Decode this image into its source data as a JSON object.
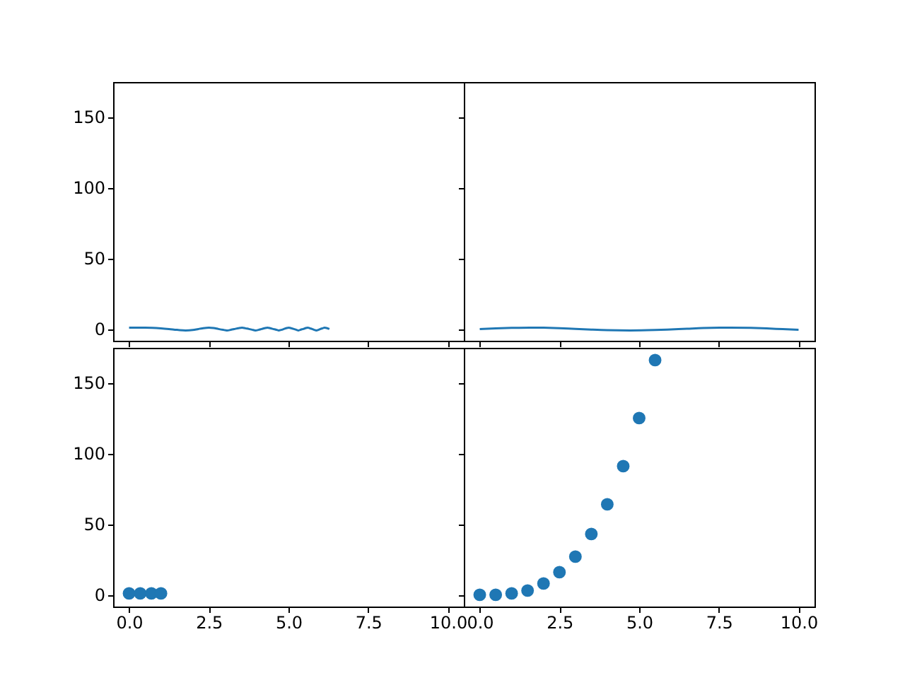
{
  "chart_data": [
    {
      "type": "line",
      "x": [
        0,
        0.5,
        1.0,
        1.2533,
        1.5,
        1.7725,
        2.0,
        2.1708,
        2.3,
        2.5066,
        2.65,
        2.8025,
        2.95,
        3.07,
        3.19,
        3.316,
        3.43,
        3.5449,
        3.65,
        3.7599,
        3.86,
        3.9633,
        4.06,
        4.1568,
        4.25,
        4.3416,
        4.43,
        4.519,
        4.6,
        4.6897,
        4.77,
        4.8543,
        4.93,
        5.0133,
        5.09,
        5.1674,
        5.24,
        5.3166,
        5.39,
        5.4616,
        5.53,
        5.6024,
        5.67,
        5.7397,
        5.81,
        5.8737,
        5.94,
        6.0043,
        6.07,
        6.1317,
        6.2832
      ],
      "values": [
        1,
        1,
        0.5,
        0,
        -0.6,
        -1,
        -0.7,
        0,
        0.5,
        1,
        0.7,
        0,
        -0.6,
        -1,
        -0.6,
        0,
        0.6,
        1,
        0.5,
        0,
        -0.5,
        -1,
        -0.6,
        0,
        0.6,
        1,
        0.6,
        0,
        -0.4,
        -1,
        -0.6,
        0,
        0.6,
        1,
        0.5,
        0,
        -0.5,
        -1,
        -0.4,
        0,
        0.6,
        1,
        0.5,
        0,
        -0.6,
        -1,
        -0.6,
        0,
        0.5,
        1,
        0
      ],
      "color": "#1f77b4",
      "xlim": [
        -0.5,
        10.5
      ],
      "ylim": [
        -8.3,
        174.7
      ],
      "xticks": [
        0,
        2.5,
        5,
        7.5,
        10
      ],
      "yticks": [
        0,
        50,
        100,
        150
      ],
      "tick_labels": "y"
    },
    {
      "type": "line",
      "x": [
        0,
        0.5,
        1,
        1.5708,
        2,
        2.5,
        3,
        3.5,
        4,
        4.7124,
        5.5,
        6,
        6.5,
        7,
        7.854,
        8.5,
        9,
        9.5,
        10
      ],
      "values": [
        0,
        0.5,
        0.8,
        1,
        0.9,
        0.6,
        0.1,
        -0.4,
        -0.8,
        -1,
        -0.7,
        -0.3,
        0.2,
        0.7,
        1,
        0.8,
        0.4,
        -0.1,
        -0.5
      ],
      "color": "#1f77b4",
      "xlim": [
        -0.5,
        10.5
      ],
      "ylim": [
        -8.3,
        174.7
      ],
      "xticks": [
        0,
        2.5,
        5,
        7.5,
        10
      ],
      "yticks": [
        0,
        50,
        100,
        150
      ],
      "tick_labels": false
    },
    {
      "type": "scatter",
      "x": [
        0,
        0.35,
        0.7,
        1
      ],
      "values": [
        1,
        1,
        1,
        1
      ],
      "color": "#1f77b4",
      "marker": "circle",
      "xlim": [
        -0.5,
        10.5
      ],
      "ylim": [
        -8.3,
        174.7
      ],
      "xticks": [
        {
          "value": 0,
          "label": "0.0"
        },
        {
          "value": 2.5,
          "label": "2.5"
        },
        {
          "value": 5,
          "label": "5.0"
        },
        {
          "value": 7.5,
          "label": "7.5"
        },
        {
          "value": 10,
          "label": "10.0"
        }
      ],
      "yticks": [
        0,
        50,
        100,
        150
      ]
    },
    {
      "type": "scatter",
      "x": [
        0,
        0.5,
        1,
        1.5,
        2,
        2.5,
        3,
        3.5,
        4,
        4.5,
        5,
        5.5
      ],
      "values": [
        0,
        0,
        1,
        3,
        8,
        16,
        27,
        43,
        64,
        91,
        125,
        166
      ],
      "color": "#1f77b4",
      "marker": "circle",
      "xlim": [
        -0.5,
        10.5
      ],
      "ylim": [
        -8.3,
        174.7
      ],
      "xticks": [
        {
          "value": 0,
          "label": "0.0"
        },
        {
          "value": 2.5,
          "label": "2.5"
        },
        {
          "value": 5,
          "label": "5.0"
        },
        {
          "value": 7.5,
          "label": "7.5"
        },
        {
          "value": 10,
          "label": "10.0"
        }
      ],
      "yticks": [
        0,
        50,
        100,
        150
      ],
      "tick_labels": "x"
    }
  ]
}
